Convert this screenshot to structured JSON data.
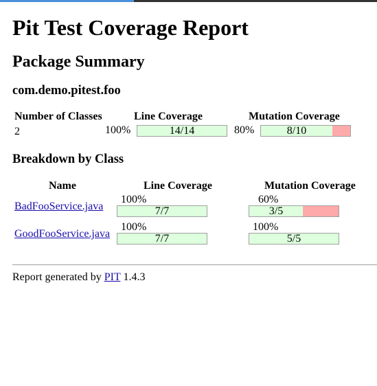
{
  "title": "Pit Test Coverage Report",
  "package_summary": {
    "heading": "Package Summary",
    "package_name": "com.demo.pitest.foo",
    "headers": {
      "classes": "Number of Classes",
      "line": "Line Coverage",
      "mutation": "Mutation Coverage"
    },
    "row": {
      "classes": "2",
      "line_pct": "100%",
      "line_text": "14/14",
      "line_fraction": 1.0,
      "mutation_pct": "80%",
      "mutation_text": "8/10",
      "mutation_fraction": 0.8
    }
  },
  "breakdown": {
    "heading": "Breakdown by Class",
    "headers": {
      "name": "Name",
      "line": "Line Coverage",
      "mutation": "Mutation Coverage"
    },
    "rows": [
      {
        "name": "BadFooService.java",
        "line_pct": "100%",
        "line_text": "7/7",
        "line_fraction": 1.0,
        "mutation_pct": "60%",
        "mutation_text": "3/5",
        "mutation_fraction": 0.6
      },
      {
        "name": "GoodFooService.java",
        "line_pct": "100%",
        "line_text": "7/7",
        "line_fraction": 1.0,
        "mutation_pct": "100%",
        "mutation_text": "5/5",
        "mutation_fraction": 1.0
      }
    ]
  },
  "footer": {
    "prefix": "Report generated by",
    "link": "PIT",
    "version": "1.4.3"
  },
  "colors": {
    "covered": "#ddffdd",
    "uncovered": "#ffaaaa",
    "bar_border": "#a0a0a0",
    "link": "#1a0dab"
  }
}
